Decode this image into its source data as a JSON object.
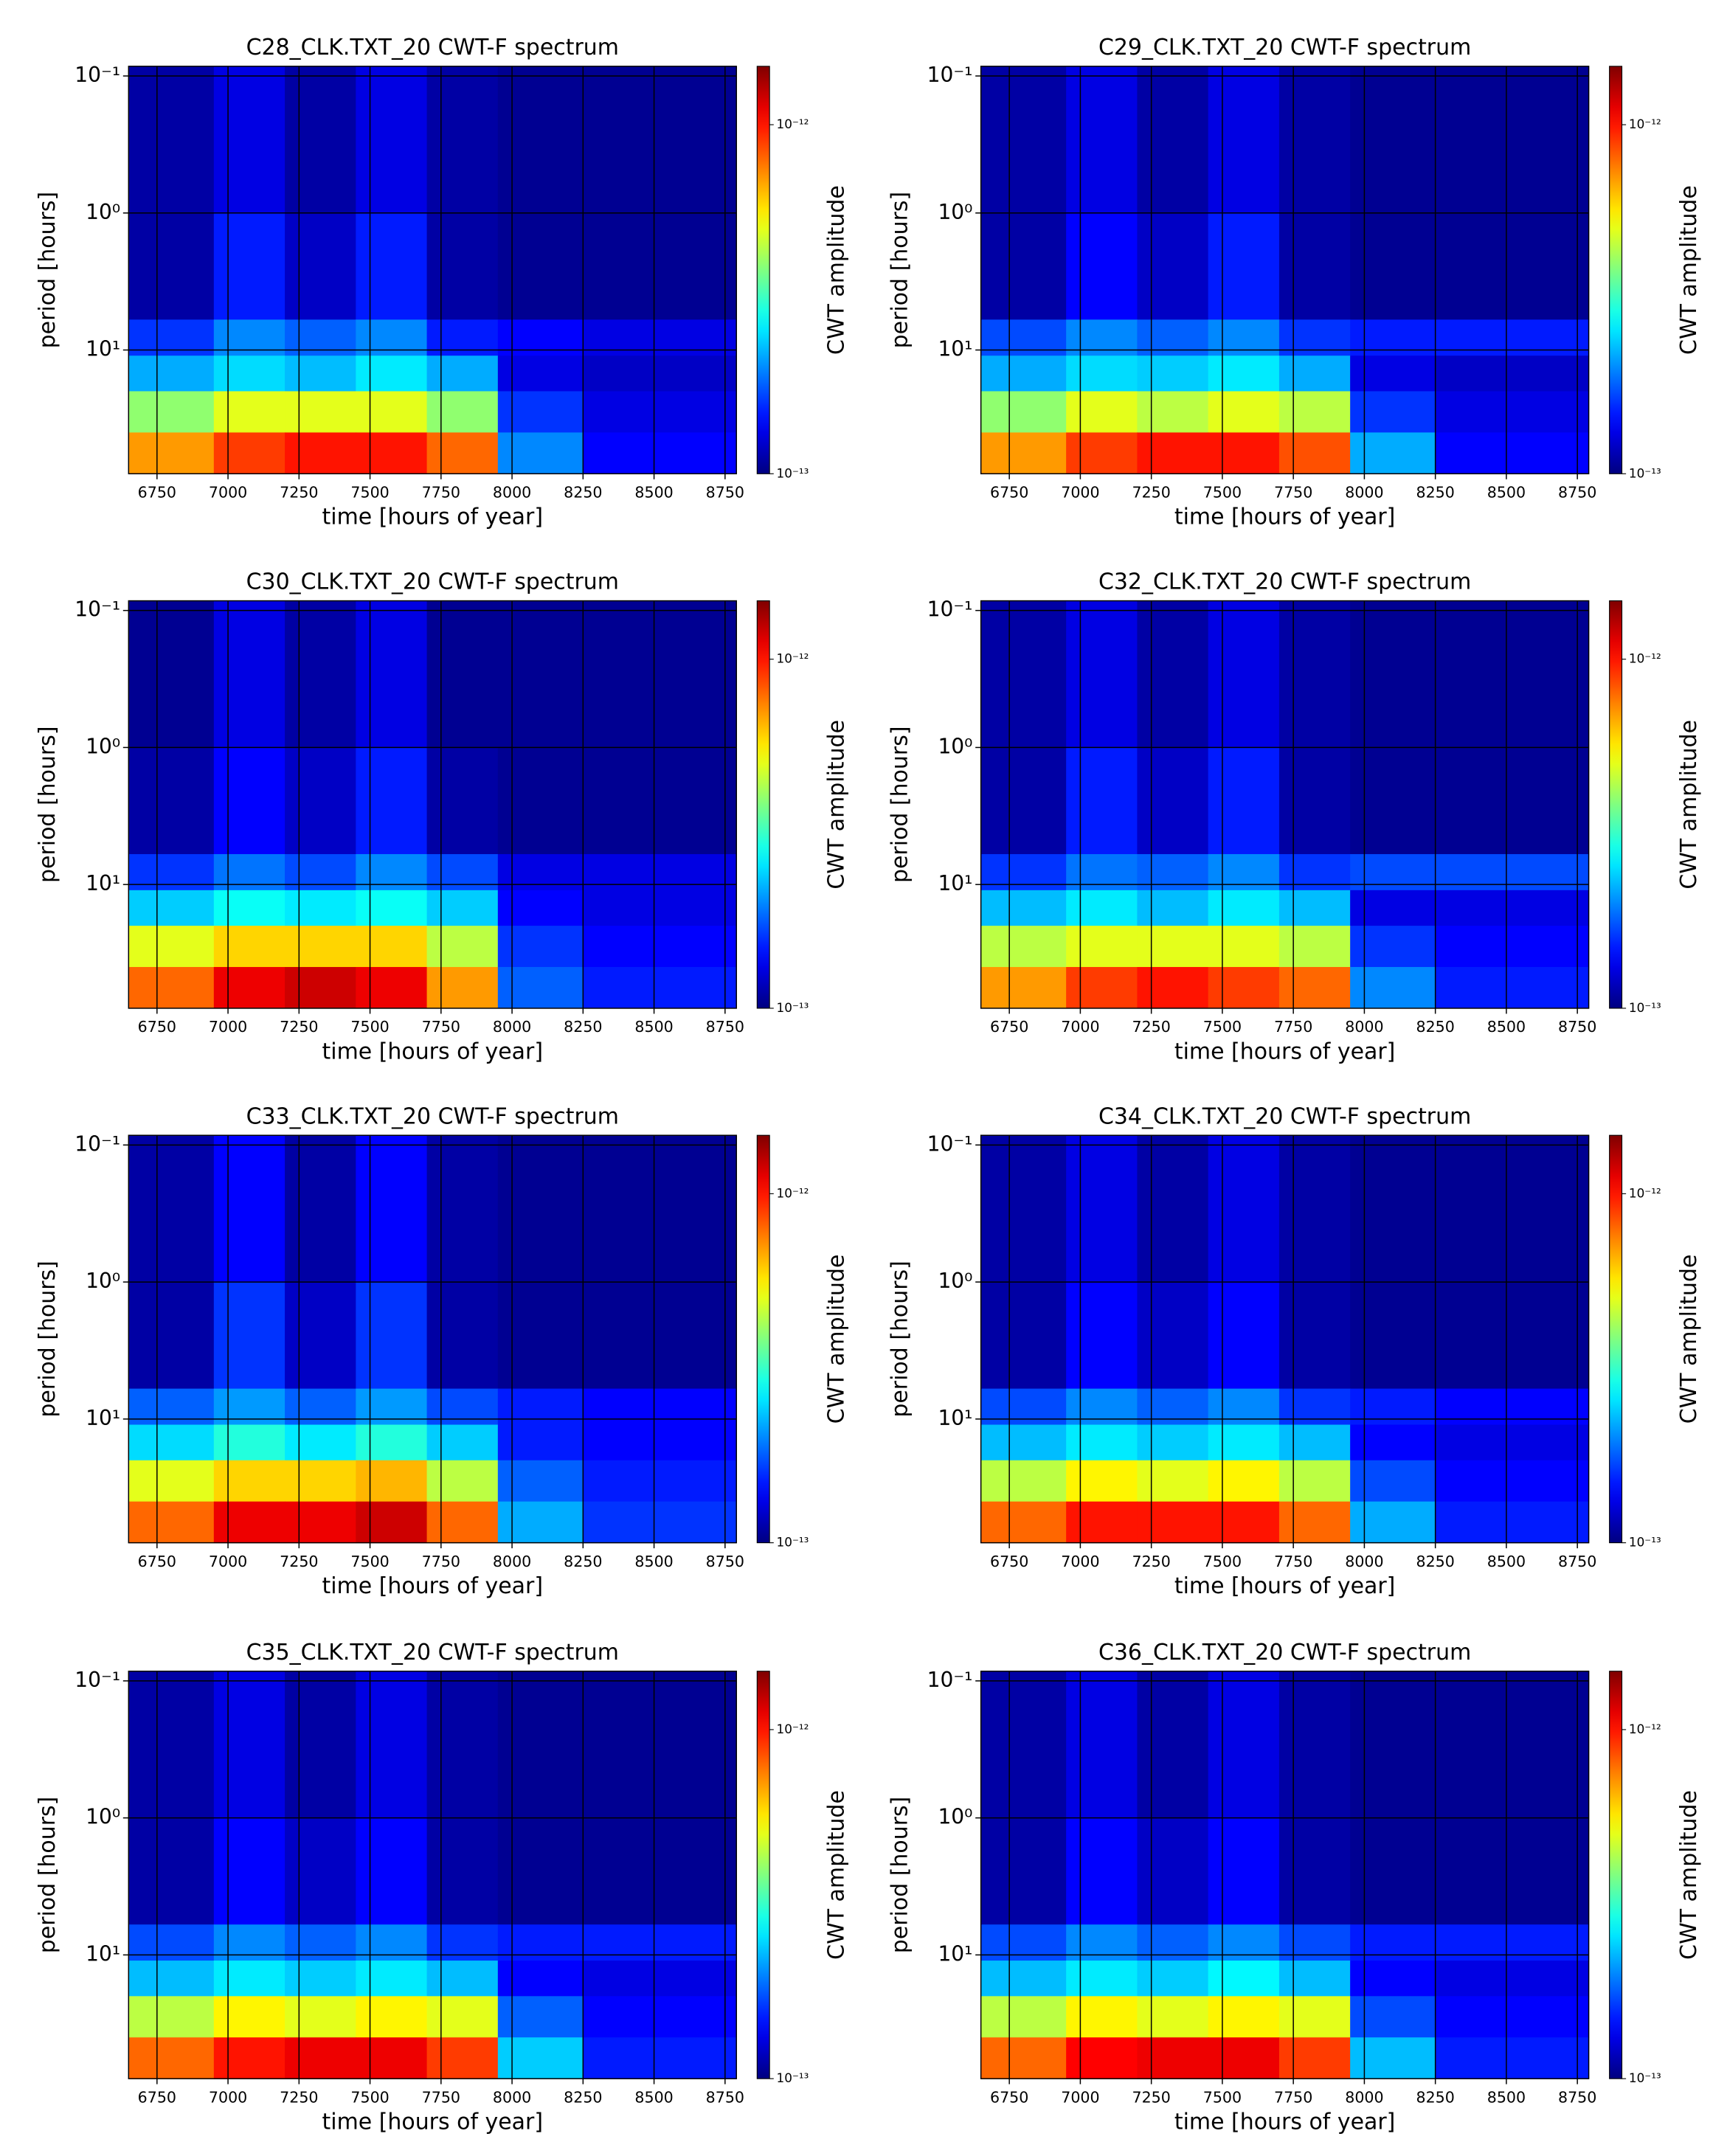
{
  "chart_data": [
    {
      "type": "heatmap",
      "title": "C28_CLK.TXT_20  CWT-F spectrum",
      "xlabel": "time [hours of year]",
      "ylabel": "period [hours]",
      "colorbar_label": "CWT amplitude",
      "x_edges": [
        6650,
        6950,
        7200,
        7450,
        7700,
        7950,
        8250,
        8790
      ],
      "y_edges": [
        0.085,
        1,
        6,
        11,
        20,
        40,
        80
      ],
      "z": [
        [
          1.1e-13,
          1.3e-13,
          1.1e-13,
          1.3e-13,
          1.1e-13,
          1.05e-13,
          1.05e-13
        ],
        [
          1.1e-13,
          1.5e-13,
          1.2e-13,
          1.5e-13,
          1.1e-13,
          1.05e-13,
          1.05e-13
        ],
        [
          1.6e-13,
          2e-13,
          1.8e-13,
          2e-13,
          1.5e-13,
          1.4e-13,
          1.3e-13
        ],
        [
          2.2e-13,
          2.5e-13,
          2.3e-13,
          2.6e-13,
          2.2e-13,
          1.3e-13,
          1.2e-13
        ],
        [
          4e-13,
          5e-13,
          5e-13,
          5e-13,
          4e-13,
          1.6e-13,
          1.3e-13
        ],
        [
          7e-13,
          9e-13,
          1e-12,
          1e-12,
          8e-13,
          2e-13,
          1.4e-13
        ]
      ],
      "xlim": [
        6650,
        8790
      ],
      "ylim": [
        0.085,
        80
      ],
      "xticks": [
        6750,
        7000,
        7250,
        7500,
        7750,
        8000,
        8250,
        8500,
        8750
      ],
      "yticks": [
        {
          "value": 0.1,
          "label": "10⁻¹"
        },
        {
          "value": 1,
          "label": "10⁰"
        },
        {
          "value": 10,
          "label": "10¹"
        }
      ],
      "yscale": "log",
      "yinvert": true,
      "clim": [
        1e-13,
        1.47e-12
      ],
      "cticks": [
        {
          "value": 1e-13,
          "label": "10⁻¹³"
        },
        {
          "value": 1e-12,
          "label": "10⁻¹²"
        }
      ],
      "colormap": "jet",
      "grid": true
    },
    {
      "type": "heatmap",
      "title": "C29_CLK.TXT_20  CWT-F spectrum",
      "xlabel": "time [hours of year]",
      "ylabel": "period [hours]",
      "colorbar_label": "CWT amplitude",
      "x_edges": [
        6650,
        6950,
        7200,
        7450,
        7700,
        7950,
        8250,
        8790
      ],
      "y_edges": [
        0.085,
        1,
        6,
        11,
        20,
        40,
        80
      ],
      "z": [
        [
          1.1e-13,
          1.3e-13,
          1.1e-13,
          1.3e-13,
          1.1e-13,
          1.05e-13,
          1.05e-13
        ],
        [
          1.1e-13,
          1.4e-13,
          1.2e-13,
          1.5e-13,
          1.1e-13,
          1.05e-13,
          1.05e-13
        ],
        [
          1.7e-13,
          2e-13,
          1.8e-13,
          2e-13,
          1.6e-13,
          1.5e-13,
          1.5e-13
        ],
        [
          2.2e-13,
          2.5e-13,
          2.4e-13,
          2.6e-13,
          2.2e-13,
          1.3e-13,
          1.2e-13
        ],
        [
          4e-13,
          5e-13,
          4.5e-13,
          5e-13,
          4.5e-13,
          1.6e-13,
          1.3e-13
        ],
        [
          7e-13,
          9e-13,
          1e-12,
          1e-12,
          8.5e-13,
          2.2e-13,
          1.4e-13
        ]
      ],
      "xlim": [
        6650,
        8790
      ],
      "ylim": [
        0.085,
        80
      ],
      "xticks": [
        6750,
        7000,
        7250,
        7500,
        7750,
        8000,
        8250,
        8500,
        8750
      ],
      "yticks": [
        {
          "value": 0.1,
          "label": "10⁻¹"
        },
        {
          "value": 1,
          "label": "10⁰"
        },
        {
          "value": 10,
          "label": "10¹"
        }
      ],
      "yscale": "log",
      "yinvert": true,
      "clim": [
        1e-13,
        1.47e-12
      ],
      "cticks": [
        {
          "value": 1e-13,
          "label": "10⁻¹³"
        },
        {
          "value": 1e-12,
          "label": "10⁻¹²"
        }
      ],
      "colormap": "jet",
      "grid": true
    },
    {
      "type": "heatmap",
      "title": "C30_CLK.TXT_20  CWT-F spectrum",
      "xlabel": "time [hours of year]",
      "ylabel": "period [hours]",
      "colorbar_label": "CWT amplitude",
      "x_edges": [
        6650,
        6950,
        7200,
        7450,
        7700,
        7950,
        8250,
        8790
      ],
      "y_edges": [
        0.085,
        1,
        6,
        11,
        20,
        40,
        80
      ],
      "z": [
        [
          1.05e-13,
          1.3e-13,
          1.1e-13,
          1.3e-13,
          1.05e-13,
          1.05e-13,
          1.05e-13
        ],
        [
          1.1e-13,
          1.4e-13,
          1.2e-13,
          1.5e-13,
          1.1e-13,
          1.05e-13,
          1.05e-13
        ],
        [
          1.6e-13,
          1.9e-13,
          1.7e-13,
          2e-13,
          1.7e-13,
          1.3e-13,
          1.3e-13
        ],
        [
          2.4e-13,
          2.8e-13,
          2.6e-13,
          2.8e-13,
          2.4e-13,
          1.4e-13,
          1.3e-13
        ],
        [
          5e-13,
          6e-13,
          6e-13,
          6e-13,
          4.5e-13,
          1.6e-13,
          1.4e-13
        ],
        [
          8e-13,
          1.1e-12,
          1.2e-12,
          1.1e-12,
          7e-13,
          1.8e-13,
          1.5e-13
        ]
      ],
      "xlim": [
        6650,
        8790
      ],
      "ylim": [
        0.085,
        80
      ],
      "xticks": [
        6750,
        7000,
        7250,
        7500,
        7750,
        8000,
        8250,
        8500,
        8750
      ],
      "yticks": [
        {
          "value": 0.1,
          "label": "10⁻¹"
        },
        {
          "value": 1,
          "label": "10⁰"
        },
        {
          "value": 10,
          "label": "10¹"
        }
      ],
      "yscale": "log",
      "yinvert": true,
      "clim": [
        1e-13,
        1.47e-12
      ],
      "cticks": [
        {
          "value": 1e-13,
          "label": "10⁻¹³"
        },
        {
          "value": 1e-12,
          "label": "10⁻¹²"
        }
      ],
      "colormap": "jet",
      "grid": true
    },
    {
      "type": "heatmap",
      "title": "C32_CLK.TXT_20  CWT-F spectrum",
      "xlabel": "time [hours of year]",
      "ylabel": "period [hours]",
      "colorbar_label": "CWT amplitude",
      "x_edges": [
        6650,
        6950,
        7200,
        7450,
        7700,
        7950,
        8250,
        8790
      ],
      "y_edges": [
        0.085,
        1,
        6,
        11,
        20,
        40,
        80
      ],
      "z": [
        [
          1.1e-13,
          1.3e-13,
          1.1e-13,
          1.3e-13,
          1.1e-13,
          1.05e-13,
          1.05e-13
        ],
        [
          1.1e-13,
          1.5e-13,
          1.2e-13,
          1.5e-13,
          1.1e-13,
          1.05e-13,
          1.05e-13
        ],
        [
          1.6e-13,
          1.9e-13,
          1.8e-13,
          2e-13,
          1.6e-13,
          1.7e-13,
          1.7e-13
        ],
        [
          2.3e-13,
          2.6e-13,
          2.3e-13,
          2.6e-13,
          2.3e-13,
          1.3e-13,
          1.3e-13
        ],
        [
          4.5e-13,
          5e-13,
          5e-13,
          5e-13,
          4.5e-13,
          1.6e-13,
          1.4e-13
        ],
        [
          7e-13,
          9e-13,
          1e-12,
          9e-13,
          8e-13,
          2e-13,
          1.5e-13
        ]
      ],
      "xlim": [
        6650,
        8790
      ],
      "ylim": [
        0.085,
        80
      ],
      "xticks": [
        6750,
        7000,
        7250,
        7500,
        7750,
        8000,
        8250,
        8500,
        8750
      ],
      "yticks": [
        {
          "value": 0.1,
          "label": "10⁻¹"
        },
        {
          "value": 1,
          "label": "10⁰"
        },
        {
          "value": 10,
          "label": "10¹"
        }
      ],
      "yscale": "log",
      "yinvert": true,
      "clim": [
        1e-13,
        1.47e-12
      ],
      "cticks": [
        {
          "value": 1e-13,
          "label": "10⁻¹³"
        },
        {
          "value": 1e-12,
          "label": "10⁻¹²"
        }
      ],
      "colormap": "jet",
      "grid": true
    },
    {
      "type": "heatmap",
      "title": "C33_CLK.TXT_20  CWT-F spectrum",
      "xlabel": "time [hours of year]",
      "ylabel": "period [hours]",
      "colorbar_label": "CWT amplitude",
      "x_edges": [
        6650,
        6950,
        7200,
        7450,
        7700,
        7950,
        8250,
        8790
      ],
      "y_edges": [
        0.085,
        1,
        6,
        11,
        20,
        40,
        80
      ],
      "z": [
        [
          1.1e-13,
          1.4e-13,
          1.1e-13,
          1.4e-13,
          1.1e-13,
          1.05e-13,
          1.05e-13
        ],
        [
          1.1e-13,
          1.6e-13,
          1.2e-13,
          1.6e-13,
          1.1e-13,
          1.05e-13,
          1.05e-13
        ],
        [
          1.8e-13,
          2.1e-13,
          1.8e-13,
          2.1e-13,
          1.7e-13,
          1.5e-13,
          1.4e-13
        ],
        [
          2.5e-13,
          3e-13,
          2.6e-13,
          3e-13,
          2.4e-13,
          1.5e-13,
          1.4e-13
        ],
        [
          5e-13,
          6e-13,
          6e-13,
          6.5e-13,
          4.5e-13,
          1.8e-13,
          1.5e-13
        ],
        [
          8e-13,
          1.1e-12,
          1.1e-12,
          1.2e-12,
          8e-13,
          2.2e-13,
          1.6e-13
        ]
      ],
      "xlim": [
        6650,
        8790
      ],
      "ylim": [
        0.085,
        80
      ],
      "xticks": [
        6750,
        7000,
        7250,
        7500,
        7750,
        8000,
        8250,
        8500,
        8750
      ],
      "yticks": [
        {
          "value": 0.1,
          "label": "10⁻¹"
        },
        {
          "value": 1,
          "label": "10⁰"
        },
        {
          "value": 10,
          "label": "10¹"
        }
      ],
      "yscale": "log",
      "yinvert": true,
      "clim": [
        1e-13,
        1.47e-12
      ],
      "cticks": [
        {
          "value": 1e-13,
          "label": "10⁻¹³"
        },
        {
          "value": 1e-12,
          "label": "10⁻¹²"
        }
      ],
      "colormap": "jet",
      "grid": true
    },
    {
      "type": "heatmap",
      "title": "C34_CLK.TXT_20  CWT-F spectrum",
      "xlabel": "time [hours of year]",
      "ylabel": "period [hours]",
      "colorbar_label": "CWT amplitude",
      "x_edges": [
        6650,
        6950,
        7200,
        7450,
        7700,
        7950,
        8250,
        8790
      ],
      "y_edges": [
        0.085,
        1,
        6,
        11,
        20,
        40,
        80
      ],
      "z": [
        [
          1.1e-13,
          1.3e-13,
          1.1e-13,
          1.3e-13,
          1.1e-13,
          1.05e-13,
          1.05e-13
        ],
        [
          1.1e-13,
          1.4e-13,
          1.2e-13,
          1.4e-13,
          1.1e-13,
          1.05e-13,
          1.05e-13
        ],
        [
          1.7e-13,
          2e-13,
          1.8e-13,
          2e-13,
          1.6e-13,
          1.5e-13,
          1.4e-13
        ],
        [
          2.3e-13,
          2.6e-13,
          2.4e-13,
          2.6e-13,
          2.3e-13,
          1.4e-13,
          1.3e-13
        ],
        [
          4.5e-13,
          5.5e-13,
          5e-13,
          5.5e-13,
          4.5e-13,
          1.7e-13,
          1.4e-13
        ],
        [
          8e-13,
          1e-12,
          1e-12,
          1e-12,
          8e-13,
          2.2e-13,
          1.5e-13
        ]
      ],
      "xlim": [
        6650,
        8790
      ],
      "ylim": [
        0.085,
        80
      ],
      "xticks": [
        6750,
        7000,
        7250,
        7500,
        7750,
        8000,
        8250,
        8500,
        8750
      ],
      "yticks": [
        {
          "value": 0.1,
          "label": "10⁻¹"
        },
        {
          "value": 1,
          "label": "10⁰"
        },
        {
          "value": 10,
          "label": "10¹"
        }
      ],
      "yscale": "log",
      "yinvert": true,
      "clim": [
        1e-13,
        1.47e-12
      ],
      "cticks": [
        {
          "value": 1e-13,
          "label": "10⁻¹³"
        },
        {
          "value": 1e-12,
          "label": "10⁻¹²"
        }
      ],
      "colormap": "jet",
      "grid": true
    },
    {
      "type": "heatmap",
      "title": "C35_CLK.TXT_20  CWT-F spectrum",
      "xlabel": "time [hours of year]",
      "ylabel": "period [hours]",
      "colorbar_label": "CWT amplitude",
      "x_edges": [
        6650,
        6950,
        7200,
        7450,
        7700,
        7950,
        8250,
        8790
      ],
      "y_edges": [
        0.085,
        1,
        6,
        11,
        20,
        40,
        80
      ],
      "z": [
        [
          1.1e-13,
          1.3e-13,
          1.1e-13,
          1.3e-13,
          1.1e-13,
          1.05e-13,
          1.05e-13
        ],
        [
          1.1e-13,
          1.4e-13,
          1.2e-13,
          1.4e-13,
          1.1e-13,
          1.05e-13,
          1.05e-13
        ],
        [
          1.7e-13,
          2e-13,
          1.8e-13,
          2e-13,
          1.6e-13,
          1.5e-13,
          1.5e-13
        ],
        [
          2.3e-13,
          2.6e-13,
          2.4e-13,
          2.6e-13,
          2.3e-13,
          1.4e-13,
          1.3e-13
        ],
        [
          4.5e-13,
          5.5e-13,
          5e-13,
          5.5e-13,
          5e-13,
          1.8e-13,
          1.4e-13
        ],
        [
          8e-13,
          1e-12,
          1.1e-12,
          1.1e-12,
          9e-13,
          2.4e-13,
          1.5e-13
        ]
      ],
      "xlim": [
        6650,
        8790
      ],
      "ylim": [
        0.085,
        80
      ],
      "xticks": [
        6750,
        7000,
        7250,
        7500,
        7750,
        8000,
        8250,
        8500,
        8750
      ],
      "yticks": [
        {
          "value": 0.1,
          "label": "10⁻¹"
        },
        {
          "value": 1,
          "label": "10⁰"
        },
        {
          "value": 10,
          "label": "10¹"
        }
      ],
      "yscale": "log",
      "yinvert": true,
      "clim": [
        1e-13,
        1.47e-12
      ],
      "cticks": [
        {
          "value": 1e-13,
          "label": "10⁻¹³"
        },
        {
          "value": 1e-12,
          "label": "10⁻¹²"
        }
      ],
      "colormap": "jet",
      "grid": true
    },
    {
      "type": "heatmap",
      "title": "C36_CLK.TXT_20  CWT-F spectrum",
      "xlabel": "time [hours of year]",
      "ylabel": "period [hours]",
      "colorbar_label": "CWT amplitude",
      "x_edges": [
        6650,
        6950,
        7200,
        7450,
        7700,
        7950,
        8250,
        8790
      ],
      "y_edges": [
        0.085,
        1,
        6,
        11,
        20,
        40,
        80
      ],
      "z": [
        [
          1.1e-13,
          1.3e-13,
          1.1e-13,
          1.3e-13,
          1.1e-13,
          1.05e-13,
          1.05e-13
        ],
        [
          1.1e-13,
          1.4e-13,
          1.2e-13,
          1.4e-13,
          1.1e-13,
          1.05e-13,
          1.05e-13
        ],
        [
          1.7e-13,
          2e-13,
          1.8e-13,
          2e-13,
          1.7e-13,
          1.5e-13,
          1.5e-13
        ],
        [
          2.3e-13,
          2.6e-13,
          2.4e-13,
          2.7e-13,
          2.3e-13,
          1.4e-13,
          1.3e-13
        ],
        [
          4.5e-13,
          5.5e-13,
          5e-13,
          5.5e-13,
          5e-13,
          1.7e-13,
          1.4e-13
        ],
        [
          8e-13,
          1.05e-12,
          1.1e-12,
          1.1e-12,
          9e-13,
          2.3e-13,
          1.5e-13
        ]
      ],
      "xlim": [
        6650,
        8790
      ],
      "ylim": [
        0.085,
        80
      ],
      "xticks": [
        6750,
        7000,
        7250,
        7500,
        7750,
        8000,
        8250,
        8500,
        8750
      ],
      "yticks": [
        {
          "value": 0.1,
          "label": "10⁻¹"
        },
        {
          "value": 1,
          "label": "10⁰"
        },
        {
          "value": 10,
          "label": "10¹"
        }
      ],
      "yscale": "log",
      "yinvert": true,
      "clim": [
        1e-13,
        1.47e-12
      ],
      "cticks": [
        {
          "value": 1e-13,
          "label": "10⁻¹³"
        },
        {
          "value": 1e-12,
          "label": "10⁻¹²"
        }
      ],
      "colormap": "jet",
      "grid": true
    }
  ]
}
